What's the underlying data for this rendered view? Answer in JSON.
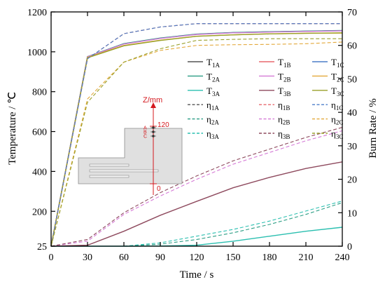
{
  "chart_data": {
    "type": "line",
    "xlabel": "Time / s",
    "ylabel_left": "Temperature / ℃",
    "ylabel_right": "Burn Rate / %",
    "x_ticks": [
      "0",
      "30",
      "60",
      "90",
      "120",
      "150",
      "180",
      "210",
      "240"
    ],
    "y_left_ticks": [
      "25",
      "200",
      "400",
      "600",
      "800",
      "1000",
      "1200"
    ],
    "y_right_ticks": [
      "0",
      "10",
      "20",
      "30",
      "40",
      "50",
      "60",
      "70"
    ],
    "xlim": [
      0,
      240
    ],
    "ylim_left": [
      25,
      1200
    ],
    "ylim_right": [
      0,
      70
    ],
    "grid": false,
    "legend_position": "top-right",
    "x": [
      0,
      30,
      60,
      90,
      120,
      150,
      180,
      210,
      240
    ],
    "series": [
      {
        "label_base": "T",
        "label_sub": "1A",
        "axis": "left",
        "style": "solid",
        "color": "#555555",
        "values": [
          25,
          975,
          1040,
          1068,
          1088,
          1096,
          1100,
          1103,
          1106
        ]
      },
      {
        "label_base": "T",
        "label_sub": "1B",
        "axis": "left",
        "style": "solid",
        "color": "#e8686e",
        "values": [
          25,
          975,
          1040,
          1068,
          1088,
          1096,
          1100,
          1103,
          1106
        ]
      },
      {
        "label_base": "T",
        "label_sub": "1C",
        "axis": "left",
        "style": "solid",
        "color": "#4d7fc9",
        "values": [
          25,
          975,
          1040,
          1068,
          1088,
          1096,
          1100,
          1103,
          1106
        ]
      },
      {
        "label_base": "T",
        "label_sub": "2A",
        "axis": "left",
        "style": "solid",
        "color": "#2a9d84",
        "values": [
          25,
          976,
          1041,
          1069,
          1089,
          1097,
          1101,
          1104,
          1107
        ]
      },
      {
        "label_base": "T",
        "label_sub": "2B",
        "axis": "left",
        "style": "solid",
        "color": "#d57ad6",
        "values": [
          25,
          975,
          1039,
          1067,
          1087,
          1095,
          1099,
          1102,
          1105
        ]
      },
      {
        "label_base": "T",
        "label_sub": "2C",
        "axis": "left",
        "style": "solid",
        "color": "#e3a83a",
        "values": [
          25,
          972,
          1032,
          1058,
          1078,
          1085,
          1090,
          1093,
          1094
        ]
      },
      {
        "label_base": "T",
        "label_sub": "3A",
        "axis": "left",
        "style": "solid",
        "color": "#2bbfb0",
        "values": [
          25,
          25,
          25,
          26,
          30,
          50,
          75,
          100,
          120
        ]
      },
      {
        "label_base": "T",
        "label_sub": "3B",
        "axis": "left",
        "style": "solid",
        "color": "#8e4a5e",
        "values": [
          25,
          30,
          100,
          180,
          250,
          318,
          370,
          415,
          448
        ]
      },
      {
        "label_base": "T",
        "label_sub": "3C",
        "axis": "left",
        "style": "solid",
        "color": "#9aa02a",
        "values": [
          25,
          970,
          1030,
          1057,
          1078,
          1085,
          1090,
          1093,
          1095
        ]
      },
      {
        "label_base": "η",
        "label_sub": "1A",
        "axis": "right",
        "style": "dashed",
        "color": "#555555",
        "values": [
          0,
          56,
          63.5,
          65.5,
          66.5,
          66.5,
          66.5,
          66.5,
          66.5
        ]
      },
      {
        "label_base": "η",
        "label_sub": "1B",
        "axis": "right",
        "style": "dashed",
        "color": "#e8686e",
        "values": [
          0,
          56,
          63.5,
          65.5,
          66.5,
          66.5,
          66.5,
          66.5,
          66.5
        ]
      },
      {
        "label_base": "η",
        "label_sub": "1C",
        "axis": "right",
        "style": "dashed",
        "color": "#4d7fc9",
        "values": [
          0,
          56,
          63.5,
          65.5,
          66.5,
          66.5,
          66.5,
          66.5,
          66.5
        ]
      },
      {
        "label_base": "η",
        "label_sub": "2A",
        "axis": "right",
        "style": "dashed",
        "color": "#2a9d84",
        "values": [
          0,
          0,
          0,
          0.6,
          2,
          4,
          6.5,
          9.5,
          13
        ]
      },
      {
        "label_base": "η",
        "label_sub": "2B",
        "axis": "right",
        "style": "dashed",
        "color": "#d57ad6",
        "values": [
          0,
          1.5,
          9.5,
          15,
          20,
          24.5,
          28,
          31.5,
          34.5
        ]
      },
      {
        "label_base": "η",
        "label_sub": "2C",
        "axis": "right",
        "style": "dashed",
        "color": "#e3a83a",
        "values": [
          0,
          44,
          55,
          58.5,
          60,
          60.2,
          60.3,
          60.5,
          61
        ]
      },
      {
        "label_base": "η",
        "label_sub": "3A",
        "axis": "right",
        "style": "dashed",
        "color": "#2bbfb0",
        "values": [
          0,
          0,
          0,
          1,
          3,
          5,
          7.5,
          10.5,
          13.5
        ]
      },
      {
        "label_base": "η",
        "label_sub": "3B",
        "axis": "right",
        "style": "dashed",
        "color": "#8e4a5e",
        "values": [
          0,
          2,
          10,
          16,
          21,
          25.5,
          29,
          32.5,
          35.5
        ]
      },
      {
        "label_base": "η",
        "label_sub": "3C",
        "axis": "right",
        "style": "dashed",
        "color": "#9aa02a",
        "values": [
          0,
          43,
          55,
          59,
          61.5,
          61.8,
          62,
          62,
          62
        ]
      }
    ],
    "inset": {
      "axis_label": "Z/mm",
      "top_value": "120",
      "bottom_value": "0",
      "points": [
        "A",
        "B",
        "C"
      ],
      "colors": {
        "fill": "#e0e0e0",
        "stroke": "#8a8a8a",
        "axis": "#d4181e"
      }
    }
  }
}
